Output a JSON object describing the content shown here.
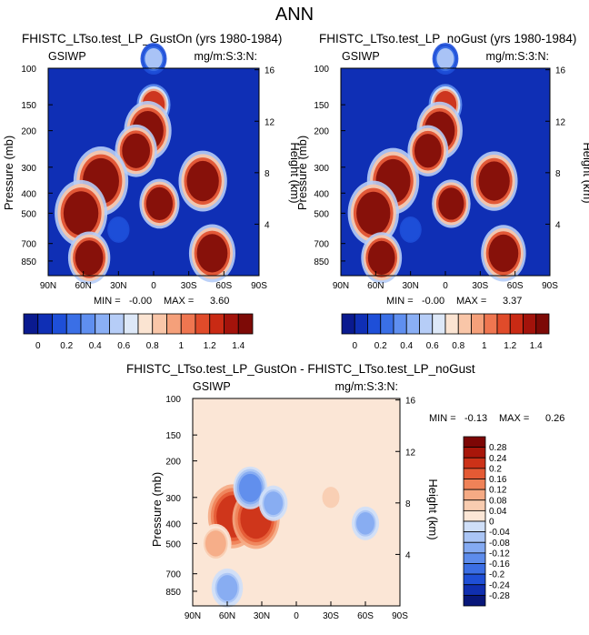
{
  "page_title": "ANN",
  "colors": {
    "top_scale": [
      "#0a1a8f",
      "#0f2fb5",
      "#1e4fd8",
      "#3a6fe6",
      "#5f8ff0",
      "#8aaff5",
      "#b6cdf7",
      "#dde8f8",
      "#fbe4d2",
      "#f9c6a8",
      "#f5a07a",
      "#ef7650",
      "#e04b2a",
      "#c92a14",
      "#a3130b",
      "#7d0a06"
    ],
    "diff_scale": [
      "#08177a",
      "#102fb0",
      "#1f4fd6",
      "#3b6ee4",
      "#5d8cec",
      "#84aaf2",
      "#aac5f5",
      "#cfdff8",
      "#fbe6d6",
      "#f8ccb0",
      "#f5aa84",
      "#ef8258",
      "#e45a34",
      "#cc3218",
      "#a8160a",
      "#7d0605"
    ]
  },
  "chart_data": [
    {
      "type": "heatmap",
      "id": "gust-on",
      "title": "FHISTC_LTso.test_LP_GustOn (yrs 1980-1984)",
      "left_label": "GSIWP",
      "right_label": "mg/m:S:3:N:",
      "ylabel": "Pressure (mb)",
      "y2label": "Height (km)",
      "x_ticks": [
        "90N",
        "60N",
        "30N",
        "0",
        "30S",
        "60S",
        "90S"
      ],
      "y_ticks": [
        "100",
        "150",
        "200",
        "300",
        "400",
        "500",
        "700",
        "850"
      ],
      "y2_ticks": [
        "16",
        "12",
        "8",
        "4"
      ],
      "stats": {
        "min_label": "MIN =",
        "min": "-0.00",
        "max_label": "MAX =",
        "max": "3.60"
      },
      "colorbar": {
        "labels": [
          "0",
          "0.2",
          "0.4",
          "0.6",
          "0.8",
          "1",
          "1.2",
          "1.4"
        ],
        "orientation": "horizontal"
      },
      "levels": [
        0,
        0.1,
        0.2,
        0.3,
        0.4,
        0.5,
        0.6,
        0.7,
        0.8,
        0.9,
        1.0,
        1.1,
        1.2,
        1.3,
        1.4
      ],
      "features": [
        {
          "lat": 0,
          "p": 90,
          "value": 0.5
        },
        {
          "lat": 0,
          "p": 150,
          "value": 1.2
        },
        {
          "lat": 5,
          "p": 200,
          "value": 2.5
        },
        {
          "lat": 15,
          "p": 250,
          "value": 2.0
        },
        {
          "lat": -5,
          "p": 450,
          "value": 1.8
        },
        {
          "lat": 45,
          "p": 350,
          "value": 3.2
        },
        {
          "lat": 62,
          "p": 500,
          "value": 3.0
        },
        {
          "lat": 55,
          "p": 820,
          "value": 2.0
        },
        {
          "lat": -42,
          "p": 350,
          "value": 2.6
        },
        {
          "lat": -50,
          "p": 780,
          "value": 2.4
        },
        {
          "lat": 30,
          "p": 600,
          "value": 0.1
        }
      ]
    },
    {
      "type": "heatmap",
      "id": "no-gust",
      "title": "FHISTC_LTso.test_LP_noGust (yrs 1980-1984)",
      "left_label": "GSIWP",
      "right_label": "mg/m:S:3:N:",
      "ylabel": "Pressure (mb)",
      "y2label": "Height (km)",
      "x_ticks": [
        "90N",
        "60N",
        "30N",
        "0",
        "30S",
        "60S",
        "90S"
      ],
      "y_ticks": [
        "100",
        "150",
        "200",
        "300",
        "400",
        "500",
        "700",
        "850"
      ],
      "y2_ticks": [
        "16",
        "12",
        "8",
        "4"
      ],
      "stats": {
        "min_label": "MIN =",
        "min": "-0.00",
        "max_label": "MAX =",
        "max": "3.37"
      },
      "colorbar": {
        "labels": [
          "0",
          "0.2",
          "0.4",
          "0.6",
          "0.8",
          "1",
          "1.2",
          "1.4"
        ],
        "orientation": "horizontal"
      },
      "levels": [
        0,
        0.1,
        0.2,
        0.3,
        0.4,
        0.5,
        0.6,
        0.7,
        0.8,
        0.9,
        1.0,
        1.1,
        1.2,
        1.3,
        1.4
      ],
      "features": [
        {
          "lat": 0,
          "p": 90,
          "value": 0.5
        },
        {
          "lat": 0,
          "p": 150,
          "value": 1.2
        },
        {
          "lat": 5,
          "p": 200,
          "value": 2.4
        },
        {
          "lat": 15,
          "p": 250,
          "value": 1.9
        },
        {
          "lat": -5,
          "p": 450,
          "value": 1.7
        },
        {
          "lat": 45,
          "p": 350,
          "value": 3.0
        },
        {
          "lat": 62,
          "p": 500,
          "value": 2.9
        },
        {
          "lat": 55,
          "p": 820,
          "value": 1.9
        },
        {
          "lat": -42,
          "p": 350,
          "value": 2.5
        },
        {
          "lat": -50,
          "p": 780,
          "value": 2.3
        },
        {
          "lat": 30,
          "p": 600,
          "value": 0.1
        }
      ]
    },
    {
      "type": "heatmap",
      "id": "difference",
      "title": "FHISTC_LTso.test_LP_GustOn - FHISTC_LTso.test_LP_noGust",
      "left_label": "GSIWP",
      "right_label": "mg/m:S:3:N:",
      "ylabel": "Pressure (mb)",
      "y2label": "Height (km)",
      "x_ticks": [
        "90N",
        "60N",
        "30N",
        "0",
        "30S",
        "60S",
        "90S"
      ],
      "y_ticks": [
        "100",
        "150",
        "200",
        "300",
        "400",
        "500",
        "700",
        "850"
      ],
      "y2_ticks": [
        "16",
        "12",
        "8",
        "4"
      ],
      "stats": {
        "min_label": "MIN =",
        "min": "-0.13",
        "max_label": "MAX =",
        "max": "0.26"
      },
      "colorbar": {
        "labels": [
          "0.28",
          "0.24",
          "0.2",
          "0.16",
          "0.12",
          "0.08",
          "0.04",
          "0",
          "-0.04",
          "-0.08",
          "-0.12",
          "-0.16",
          "-0.2",
          "-0.24",
          "-0.28"
        ],
        "orientation": "vertical"
      },
      "levels": [
        -0.28,
        -0.24,
        -0.2,
        -0.16,
        -0.12,
        -0.08,
        -0.04,
        0,
        0.04,
        0.08,
        0.12,
        0.16,
        0.2,
        0.24,
        0.28
      ],
      "features": [
        {
          "lat": 55,
          "p": 370,
          "value": 0.22
        },
        {
          "lat": 35,
          "p": 380,
          "value": 0.2
        },
        {
          "lat": 40,
          "p": 270,
          "value": -0.1
        },
        {
          "lat": 20,
          "p": 320,
          "value": -0.06
        },
        {
          "lat": 60,
          "p": 820,
          "value": -0.08
        },
        {
          "lat": -30,
          "p": 300,
          "value": 0.04
        },
        {
          "lat": -60,
          "p": 400,
          "value": -0.05
        },
        {
          "lat": 70,
          "p": 500,
          "value": 0.08
        }
      ]
    }
  ]
}
